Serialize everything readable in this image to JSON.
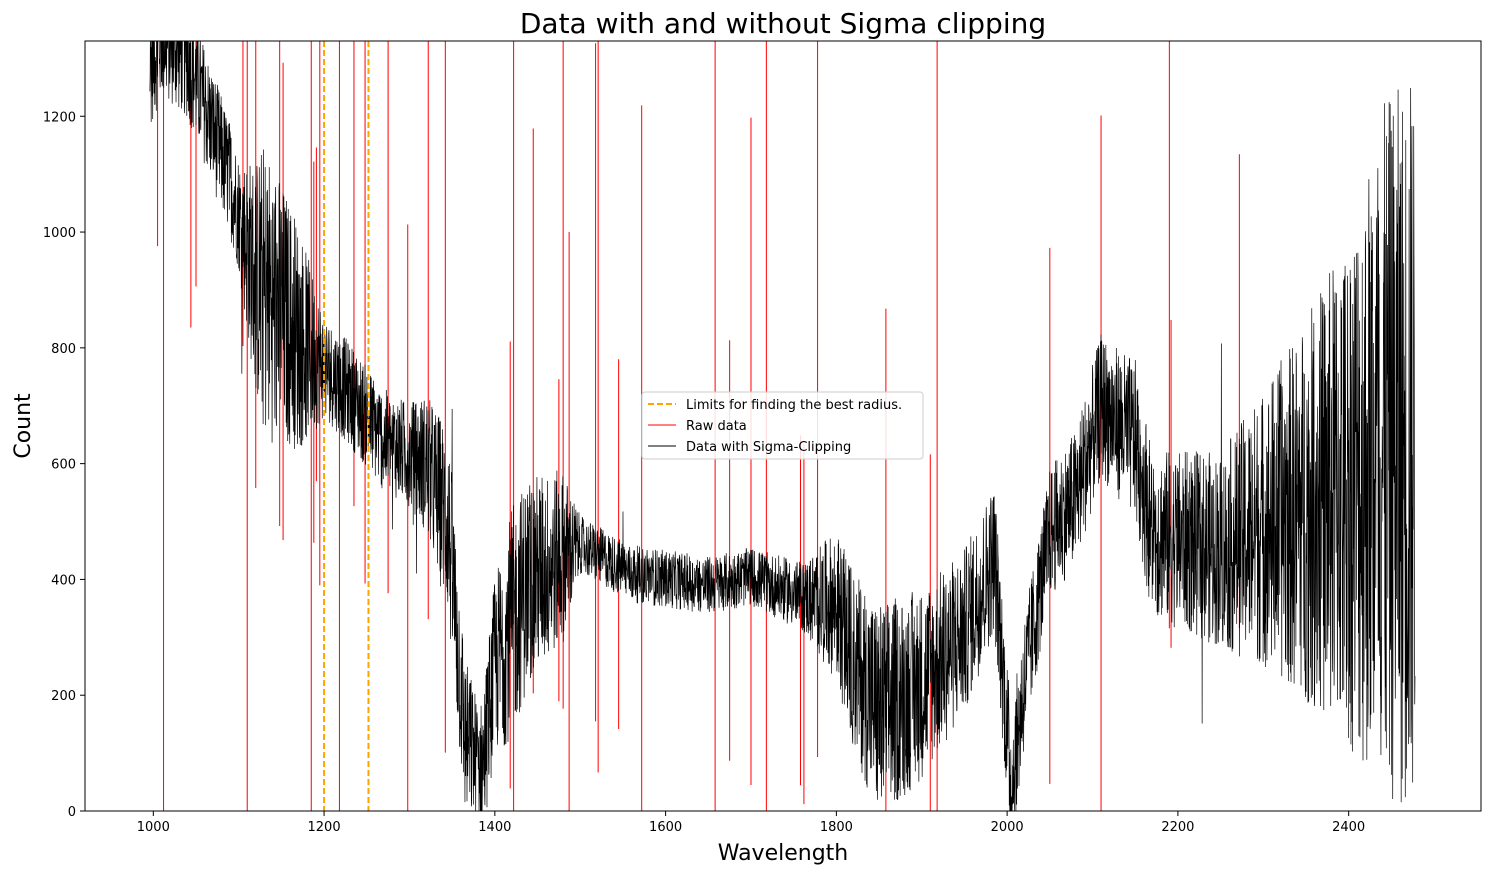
{
  "chart_data": {
    "type": "line",
    "title": "Data with and without Sigma clipping",
    "xlabel": "Wavelength",
    "ylabel": "Count",
    "xlim": [
      920,
      2555
    ],
    "ylim": [
      0,
      1330
    ],
    "x_ticks": [
      1000,
      1200,
      1400,
      1600,
      1800,
      2000,
      2200,
      2400
    ],
    "y_ticks": [
      0,
      200,
      400,
      600,
      800,
      1000,
      1200
    ],
    "x_tick_labels": [
      "1000",
      "1200",
      "1400",
      "1600",
      "1800",
      "2000",
      "2200",
      "2400"
    ],
    "y_tick_labels": [
      "0",
      "200",
      "400",
      "600",
      "800",
      "1000",
      "1200"
    ],
    "grid": false,
    "legend_position": "center",
    "vertical_lines": {
      "name": "Limits for finding the best radius.",
      "color": "#FFA500",
      "style": "dashed",
      "x": [
        1200,
        1252
      ]
    },
    "series": [
      {
        "name": "Raw data",
        "color": "#FF0000",
        "spikes_x": [
          1005,
          1012,
          1044,
          1050,
          1105,
          1110,
          1120,
          1148,
          1152,
          1185,
          1188,
          1191,
          1195,
          1218,
          1235,
          1248,
          1275,
          1298,
          1322,
          1342,
          1418,
          1422,
          1445,
          1475,
          1480,
          1487,
          1518,
          1521,
          1545,
          1572,
          1658,
          1675,
          1700,
          1718,
          1758,
          1762,
          1778,
          1858,
          1910,
          1918,
          2050,
          2110,
          2190,
          2192,
          2272
        ]
      },
      {
        "name": "Data with Sigma-Clipping",
        "color": "#000000",
        "continuum": [
          [
            996,
            1290
          ],
          [
            1010,
            1340
          ],
          [
            1040,
            1300
          ],
          [
            1060,
            1220
          ],
          [
            1090,
            1090
          ],
          [
            1120,
            920
          ],
          [
            1150,
            860
          ],
          [
            1180,
            800
          ],
          [
            1230,
            720
          ],
          [
            1270,
            640
          ],
          [
            1320,
            600
          ],
          [
            1345,
            500
          ],
          [
            1365,
            130
          ],
          [
            1385,
            70
          ],
          [
            1400,
            250
          ],
          [
            1440,
            400
          ],
          [
            1480,
            440
          ],
          [
            1500,
            460
          ],
          [
            1560,
            410
          ],
          [
            1650,
            390
          ],
          [
            1700,
            405
          ],
          [
            1760,
            370
          ],
          [
            1800,
            355
          ],
          [
            1820,
            260
          ],
          [
            1850,
            170
          ],
          [
            1900,
            220
          ],
          [
            1950,
            310
          ],
          [
            1985,
            440
          ],
          [
            2005,
            40
          ],
          [
            2020,
            220
          ],
          [
            2050,
            480
          ],
          [
            2080,
            540
          ],
          [
            2110,
            700
          ],
          [
            2150,
            640
          ],
          [
            2170,
            480
          ],
          [
            2250,
            450
          ],
          [
            2300,
            490
          ],
          [
            2350,
            520
          ],
          [
            2400,
            560
          ],
          [
            2440,
            620
          ],
          [
            2478,
            640
          ]
        ],
        "noise_amplitude": [
          [
            996,
            110
          ],
          [
            1100,
            100
          ],
          [
            1130,
            260
          ],
          [
            1170,
            200
          ],
          [
            1200,
            90
          ],
          [
            1300,
            90
          ],
          [
            1350,
            170
          ],
          [
            1380,
            110
          ],
          [
            1420,
            200
          ],
          [
            1480,
            150
          ],
          [
            1500,
            50
          ],
          [
            1700,
            50
          ],
          [
            1760,
            60
          ],
          [
            1800,
            130
          ],
          [
            1850,
            190
          ],
          [
            1960,
            140
          ],
          [
            2040,
            110
          ],
          [
            2080,
            120
          ],
          [
            2130,
            130
          ],
          [
            2150,
            140
          ],
          [
            2250,
            170
          ],
          [
            2300,
            240
          ],
          [
            2350,
            330
          ],
          [
            2400,
            450
          ],
          [
            2440,
            600
          ],
          [
            2478,
            650
          ]
        ]
      }
    ]
  }
}
